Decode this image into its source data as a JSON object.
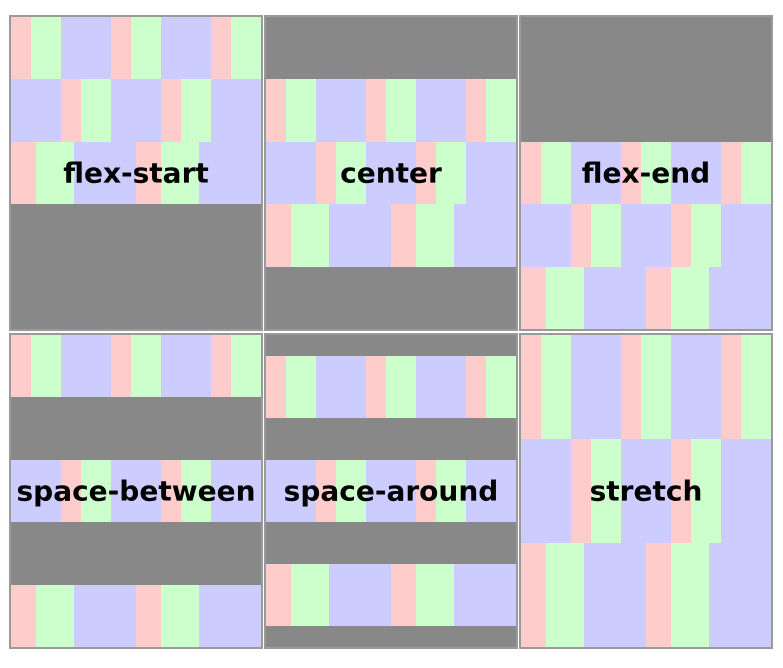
{
  "boxes": [
    {
      "label": "flex-start",
      "align_content": "flex-start"
    },
    {
      "label": "center",
      "align_content": "center"
    },
    {
      "label": "flex-end",
      "align_content": "flex-end"
    },
    {
      "label": "space-between",
      "align_content": "space-between"
    },
    {
      "label": "space-around",
      "align_content": "space-around"
    },
    {
      "label": "stretch",
      "align_content": "stretch"
    }
  ],
  "item_pattern": [
    "p",
    "g",
    "l"
  ],
  "item_count": 21,
  "colors": {
    "pink": "#ffcccc",
    "green": "#ccffcc",
    "lavender": "#ccccff",
    "container": "#888888"
  }
}
